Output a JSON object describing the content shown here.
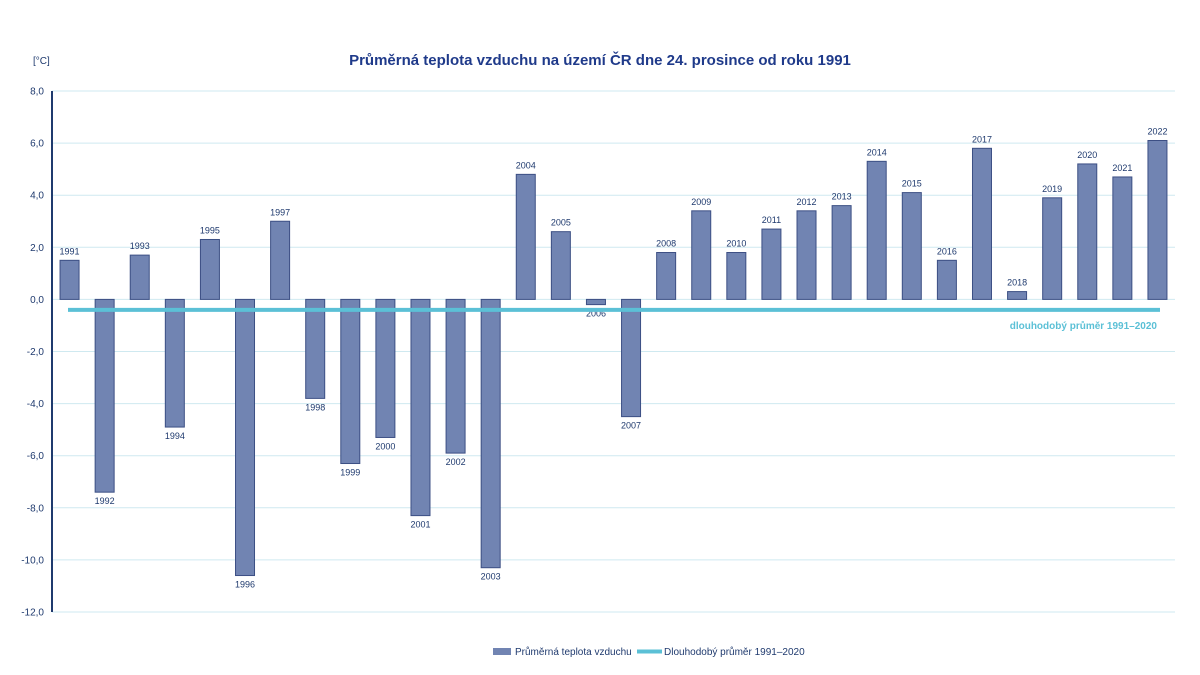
{
  "chart_data": {
    "type": "bar",
    "title": "Průměrná teplota vzduchu na území ČR dne 24. prosince od roku 1991",
    "ylabel": "[°C]",
    "ylim": [
      -12,
      8
    ],
    "yticks": [
      "8,0",
      "6,0",
      "4,0",
      "2,0",
      "0,0",
      "-2,0",
      "-4,0",
      "-6,0",
      "-8,0",
      "-10,0",
      "-12,0"
    ],
    "ytick_values": [
      8,
      6,
      4,
      2,
      0,
      -2,
      -4,
      -6,
      -8,
      -10,
      -12
    ],
    "grid": true,
    "legend_position": "bottom",
    "categories": [
      "1991",
      "1992",
      "1993",
      "1994",
      "1995",
      "1996",
      "1997",
      "1998",
      "1999",
      "2000",
      "2001",
      "2002",
      "2003",
      "2004",
      "2005",
      "2006",
      "2007",
      "2008",
      "2009",
      "2010",
      "2011",
      "2012",
      "2013",
      "2014",
      "2015",
      "2016",
      "2017",
      "2018",
      "2019",
      "2020",
      "2021",
      "2022"
    ],
    "series": [
      {
        "name": "Průměrná teplota vzduchu",
        "color": "#7184b2",
        "values": [
          1.5,
          -7.4,
          1.7,
          -4.9,
          2.3,
          -10.6,
          3.0,
          -3.8,
          -6.3,
          -5.3,
          -8.3,
          -5.9,
          -10.3,
          4.8,
          2.6,
          -0.2,
          -4.5,
          1.8,
          3.4,
          1.8,
          2.7,
          3.4,
          3.6,
          5.3,
          4.1,
          1.5,
          5.8,
          0.3,
          3.9,
          5.2,
          4.7,
          6.1
        ]
      },
      {
        "name": "Dlouhodobý  průměr  1991–2020",
        "color": "#5bc0d6",
        "type": "line",
        "value": -0.4,
        "inline_label": "dlouhodobý  průměr  1991–2020"
      }
    ]
  }
}
